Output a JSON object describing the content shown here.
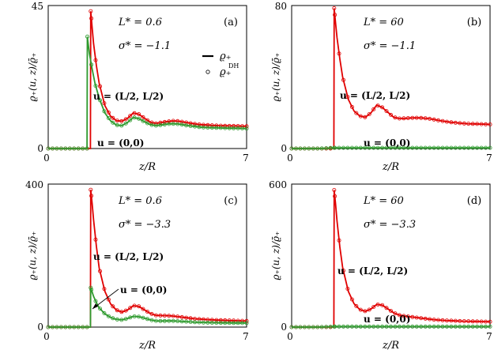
{
  "figure": {
    "ylabel_main": "ϱ₊(u, z)/ϱ̄₊",
    "xlabel": "z/R",
    "legend_line": "ϱ₊",
    "legend_marker": "ϱ₊",
    "legend_marker_sup": "DH"
  },
  "chart_data": [
    {
      "type": "line",
      "panel": "(a)",
      "title": "",
      "xlabel": "z/R",
      "ylabel": "ϱ₊(u, z)/ϱ̄₊",
      "xlim": [
        0,
        7
      ],
      "ylim": [
        0,
        45
      ],
      "xticks": [
        "0",
        "7"
      ],
      "yticks": [
        "0",
        "45"
      ],
      "params": [
        "L* = 0.6",
        "σ* = −1.1"
      ],
      "legend": {
        "position": "right",
        "entries": [
          "ϱ₊",
          "ϱ₊ᴰᴴ"
        ]
      },
      "series": [
        {
          "name": "u = (L/2, L/2)",
          "color": "#e00000",
          "x": [
            0,
            0.4,
            0.8,
            1.2,
            1.49,
            1.5,
            1.55,
            1.6,
            1.7,
            1.8,
            2.0,
            2.2,
            2.4,
            2.6,
            2.8,
            3.0,
            3.2,
            3.4,
            3.6,
            3.8,
            4.0,
            4.2,
            4.4,
            4.6,
            4.8,
            5.0,
            5.2,
            5.4,
            5.6,
            5.8,
            6.0,
            6.2,
            6.4,
            6.6,
            6.8,
            7.0
          ],
          "y": [
            0,
            0,
            0,
            0,
            0,
            43.2,
            38,
            33,
            26,
            20.5,
            13.5,
            10.2,
            8.8,
            8.6,
            9.5,
            11.2,
            10.8,
            9.5,
            8.3,
            7.9,
            8.2,
            8.5,
            8.7,
            8.6,
            8.3,
            8.0,
            7.7,
            7.5,
            7.4,
            7.3,
            7.2,
            7.15,
            7.1,
            7.1,
            7.05,
            7.0
          ]
        },
        {
          "name": "u = (0,0)",
          "color": "#2e9a2e",
          "x": [
            0,
            0.4,
            0.8,
            1.2,
            1.37,
            1.38,
            1.45,
            1.55,
            1.65,
            1.8,
            2.0,
            2.2,
            2.4,
            2.6,
            2.8,
            3.0,
            3.2,
            3.4,
            3.6,
            3.8,
            4.0,
            4.2,
            4.4,
            4.6,
            4.8,
            5.0,
            5.2,
            5.4,
            5.6,
            5.8,
            6.0,
            6.2,
            6.4,
            6.6,
            6.8,
            7.0
          ],
          "y": [
            0,
            0,
            0,
            0,
            0,
            35.2,
            30,
            25,
            20.5,
            15.8,
            11.2,
            8.7,
            7.4,
            7.2,
            8.2,
            9.8,
            9.4,
            8.4,
            7.5,
            7.2,
            7.4,
            7.7,
            7.8,
            7.7,
            7.4,
            7.1,
            6.9,
            6.7,
            6.6,
            6.55,
            6.5,
            6.45,
            6.4,
            6.4,
            6.35,
            6.3
          ]
        }
      ],
      "annotations": [
        "u = (L/2, L/2)",
        "u = (0,0)"
      ]
    },
    {
      "type": "line",
      "panel": "(b)",
      "title": "",
      "xlabel": "z/R",
      "ylabel": "ϱ₊(u, z)/ϱ̄₊",
      "xlim": [
        0,
        7
      ],
      "ylim": [
        0,
        80
      ],
      "xticks": [
        "0",
        "7"
      ],
      "yticks": [
        "0",
        "80"
      ],
      "params": [
        "L* = 60",
        "σ* = −1.1"
      ],
      "series": [
        {
          "name": "u = (L/2, L/2)",
          "color": "#e00000",
          "x": [
            0,
            0.4,
            0.8,
            1.2,
            1.49,
            1.5,
            1.55,
            1.6,
            1.7,
            1.8,
            2.0,
            2.2,
            2.4,
            2.6,
            2.8,
            3.0,
            3.2,
            3.4,
            3.6,
            3.8,
            4.0,
            4.2,
            4.4,
            4.6,
            4.8,
            5.0,
            5.2,
            5.4,
            5.6,
            5.8,
            6.0,
            6.2,
            6.4,
            6.6,
            6.8,
            7.0
          ],
          "y": [
            0,
            0,
            0,
            0,
            0,
            78.5,
            70,
            62,
            50,
            40,
            27.5,
            21,
            18.2,
            17.5,
            20,
            24.3,
            23,
            20.2,
            17.5,
            16.8,
            16.9,
            17.1,
            17.2,
            17.1,
            16.8,
            16.3,
            15.7,
            15.2,
            14.7,
            14.4,
            14.1,
            13.9,
            13.8,
            13.7,
            13.6,
            13.5
          ]
        },
        {
          "name": "u = (0,0)",
          "color": "#2e9a2e",
          "x": [
            0,
            1.0,
            1.5,
            2.0,
            3.0,
            4.0,
            5.0,
            6.0,
            7.0
          ],
          "y": [
            0,
            0,
            0.4,
            0.4,
            0.4,
            0.4,
            0.4,
            0.4,
            0.4
          ]
        }
      ],
      "annotations": [
        "u = (L/2, L/2)",
        "u = (0,0)"
      ]
    },
    {
      "type": "line",
      "panel": "(c)",
      "title": "",
      "xlabel": "z/R",
      "ylabel": "ϱ₊(u, z)/ϱ̄₊",
      "xlim": [
        0,
        7
      ],
      "ylim": [
        0,
        400
      ],
      "xticks": [
        "0",
        "7"
      ],
      "yticks": [
        "0",
        "400"
      ],
      "params": [
        "L* = 0.6",
        "σ* = −3.3"
      ],
      "series": [
        {
          "name": "u = (L/2, L/2)",
          "color": "#e00000",
          "x": [
            0,
            0.4,
            0.8,
            1.2,
            1.49,
            1.5,
            1.55,
            1.6,
            1.7,
            1.8,
            2.0,
            2.2,
            2.4,
            2.6,
            2.8,
            3.0,
            3.2,
            3.4,
            3.6,
            3.8,
            4.0,
            4.2,
            4.4,
            4.6,
            4.8,
            5.0,
            5.2,
            5.4,
            5.6,
            5.8,
            6.0,
            6.2,
            6.4,
            6.6,
            6.8,
            7.0
          ],
          "y": [
            0,
            0,
            0,
            0,
            0,
            384,
            345,
            300,
            225,
            165,
            100,
            65,
            48,
            42,
            48,
            60,
            58,
            48,
            38,
            33,
            32,
            32,
            31,
            29,
            27,
            25,
            23,
            22,
            21,
            20,
            19.5,
            19,
            18.5,
            18,
            17.5,
            17
          ]
        },
        {
          "name": "u = (0,0)",
          "color": "#2e9a2e",
          "x": [
            0,
            0.4,
            0.8,
            1.2,
            1.49,
            1.5,
            1.55,
            1.6,
            1.7,
            1.8,
            2.0,
            2.2,
            2.4,
            2.6,
            2.8,
            3.0,
            3.2,
            3.4,
            3.6,
            3.8,
            4.0,
            4.2,
            4.4,
            4.6,
            4.8,
            5.0,
            5.2,
            5.4,
            5.6,
            5.8,
            6.0,
            6.2,
            6.4,
            6.6,
            6.8,
            7.0
          ],
          "y": [
            0,
            0,
            0,
            0,
            0,
            110,
            98,
            86,
            68,
            54,
            37,
            27,
            21.5,
            20,
            24,
            30,
            29,
            25,
            20,
            17.5,
            17,
            17.2,
            17.3,
            16.5,
            15.5,
            14.5,
            13.5,
            13,
            12.5,
            12.2,
            12,
            11.8,
            11.7,
            11.5,
            11.4,
            11.3
          ]
        }
      ],
      "annotations": [
        "u = (L/2, L/2)",
        "u = (0,0)"
      ]
    },
    {
      "type": "line",
      "panel": "(d)",
      "title": "",
      "xlabel": "z/R",
      "ylabel": "ϱ₊(u, z)/ϱ̄₊",
      "xlim": [
        0,
        7
      ],
      "ylim": [
        0,
        600
      ],
      "xticks": [
        "0",
        "7"
      ],
      "yticks": [
        "0",
        "600"
      ],
      "params": [
        "L* = 60",
        "σ* = −3.3"
      ],
      "series": [
        {
          "name": "u = (L/2, L/2)",
          "color": "#e00000",
          "x": [
            0,
            0.4,
            0.8,
            1.2,
            1.49,
            1.5,
            1.55,
            1.6,
            1.7,
            1.8,
            2.0,
            2.2,
            2.4,
            2.6,
            2.8,
            3.0,
            3.2,
            3.4,
            3.6,
            3.8,
            4.0,
            4.2,
            4.4,
            4.6,
            4.8,
            5.0,
            5.2,
            5.4,
            5.6,
            5.8,
            6.0,
            6.2,
            6.4,
            6.6,
            6.8,
            7.0
          ],
          "y": [
            0,
            0,
            0,
            0,
            0,
            575,
            515,
            445,
            335,
            250,
            150,
            98,
            74,
            66,
            76,
            95,
            92,
            76,
            60,
            50,
            46,
            43,
            40,
            37,
            34,
            31.5,
            29.5,
            28,
            27,
            26,
            25,
            24.5,
            24,
            23.5,
            23,
            22.5
          ]
        },
        {
          "name": "u = (0,0)",
          "color": "#2e9a2e",
          "x": [
            0,
            1.0,
            1.5,
            2.0,
            3.0,
            4.0,
            5.0,
            6.0,
            7.0
          ],
          "y": [
            0,
            0,
            2,
            2,
            2,
            2,
            2,
            2,
            2
          ]
        }
      ],
      "annotations": [
        "u = (L/2, L/2)",
        "u = (0,0)"
      ]
    }
  ]
}
